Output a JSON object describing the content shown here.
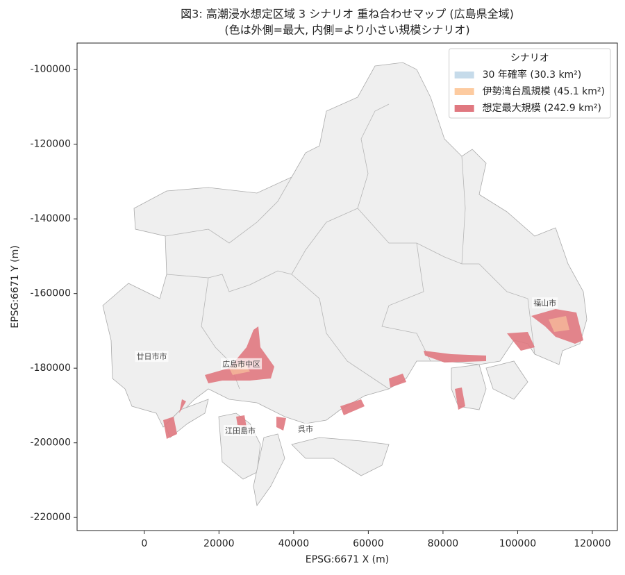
{
  "chart_data": {
    "type": "map",
    "title": "図3: 高潮浸水想定区域 3 シナリオ 重ね合わせマップ (広島県全域)",
    "subtitle": "(色は外側=最大, 内側=より小さい規模シナリオ)",
    "x_label": "EPSG:6671 X (m)",
    "y_label": "EPSG:6671 Y (m)",
    "xlim": [
      -18000,
      126700
    ],
    "ylim": [
      -223500,
      -92900
    ],
    "xticks": [
      0,
      20000,
      40000,
      60000,
      80000,
      100000,
      120000
    ],
    "yticks": [
      -100000,
      -120000,
      -140000,
      -160000,
      -180000,
      -200000,
      -220000
    ],
    "legend": {
      "title": "シナリオ",
      "position": "upper right"
    },
    "series": [
      {
        "name": "30 年確率 (30.3 km²)",
        "color": "#c6dbea"
      },
      {
        "name": "伊勢湾台風規模 (45.1 km²)",
        "color": "#fdcba0"
      },
      {
        "name": "想定最大規模 (242.9 km²)",
        "color": "#e07880"
      }
    ],
    "annotations": [
      {
        "text": "廿日市市",
        "x": 2000,
        "y": -177000
      },
      {
        "text": "広島市中区",
        "x": 26000,
        "y": -179000
      },
      {
        "text": "江田島市",
        "x": 25700,
        "y": -196900
      },
      {
        "text": "呉市",
        "x": 43200,
        "y": -196400
      },
      {
        "text": "福山市",
        "x": 107300,
        "y": -162700
      }
    ]
  }
}
